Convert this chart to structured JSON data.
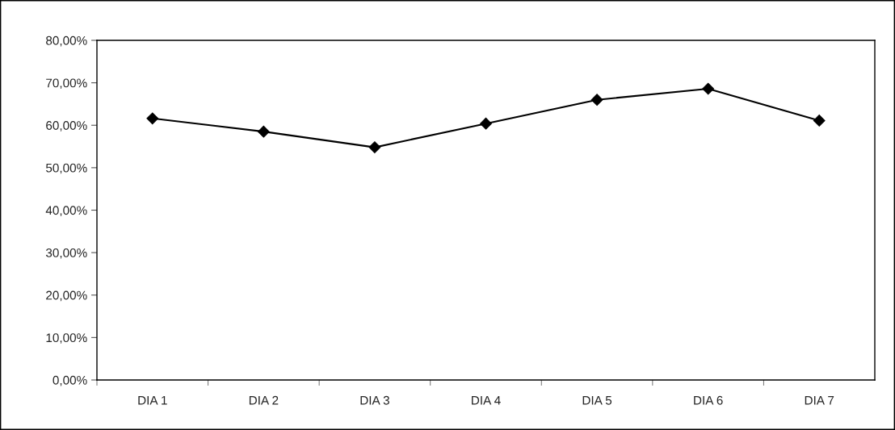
{
  "chart_data": {
    "type": "line",
    "categories": [
      "DIA 1",
      "DIA 2",
      "DIA 3",
      "DIA 4",
      "DIA 5",
      "DIA 6",
      "DIA 7"
    ],
    "series": [
      {
        "color": "#000000",
        "values": [
          61.6,
          58.5,
          54.8,
          60.4,
          66.0,
          68.6,
          61.1
        ]
      }
    ],
    "ylim": [
      0,
      80
    ],
    "yticks": [
      {
        "value": 0,
        "label": "0,00%"
      },
      {
        "value": 10,
        "label": "10,00%"
      },
      {
        "value": 20,
        "label": "20,00%"
      },
      {
        "value": 30,
        "label": "30,00%"
      },
      {
        "value": 40,
        "label": "40,00%"
      },
      {
        "value": 50,
        "label": "50,00%"
      },
      {
        "value": 60,
        "label": "60,00%"
      },
      {
        "value": 70,
        "label": "70,00%"
      },
      {
        "value": 80,
        "label": "80,00%"
      }
    ],
    "grid": false,
    "marker": "diamond",
    "line_style": "solid"
  }
}
